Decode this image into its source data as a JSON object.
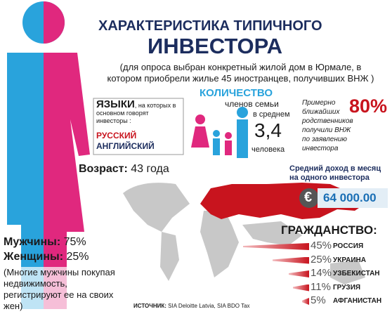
{
  "title": {
    "line1": "ХАРАКТЕРИСТИКА ТИПИЧНОГО",
    "line2": "ИНВЕСТОРА"
  },
  "subtitle": "(для опроса выбран конкретный жилой дом в Юрмале, в котором приобрели жилье 45 иностранцев, получивших ВНЖ )",
  "languages": {
    "heading": "ЯЗЫКИ",
    "text": ", на которых в основном говорят инвесторы :",
    "items": [
      "РУССКИЙ",
      "АНГЛИЙСКИЙ"
    ]
  },
  "family": {
    "heading": "КОЛИЧЕСТВО",
    "line1": "членов семьи",
    "line2": "в среднем",
    "value": "3,4",
    "unit": "человека"
  },
  "relatives": {
    "text": "Примерно ближайших родственников получили ВНЖ по заявлению инвестора",
    "value": "80%"
  },
  "age": {
    "label": "Возраст:",
    "value": "43 года"
  },
  "income": {
    "label": "Средний доход в месяц на одного инвестора",
    "currency": "€",
    "value": "64 000.00"
  },
  "gender": {
    "men_label": "Мужчины:",
    "men_value": "75%",
    "women_label": "Женщины:",
    "women_value": "25%",
    "note": "(Многие мужчины покупая недвижимость, регистрируют ее на своих жен)"
  },
  "citizenship": {
    "title": "ГРАЖДАНСТВО:",
    "rows": [
      {
        "value": 45,
        "label": "45%",
        "country": "РОССИЯ"
      },
      {
        "value": 25,
        "label": "25%",
        "country": "УКРАИНА"
      },
      {
        "value": 14,
        "label": "14%",
        "country": "УЗБЕКИСТАН"
      },
      {
        "value": 11,
        "label": "11%",
        "country": "ГРУЗИЯ"
      },
      {
        "value": 5,
        "label": "5%",
        "country": "АФГАНИСТАН"
      }
    ]
  },
  "source": {
    "label": "ИСТОЧНИК:",
    "text": "SIA Deloitte Latvia, SIA BDO Tax"
  }
}
